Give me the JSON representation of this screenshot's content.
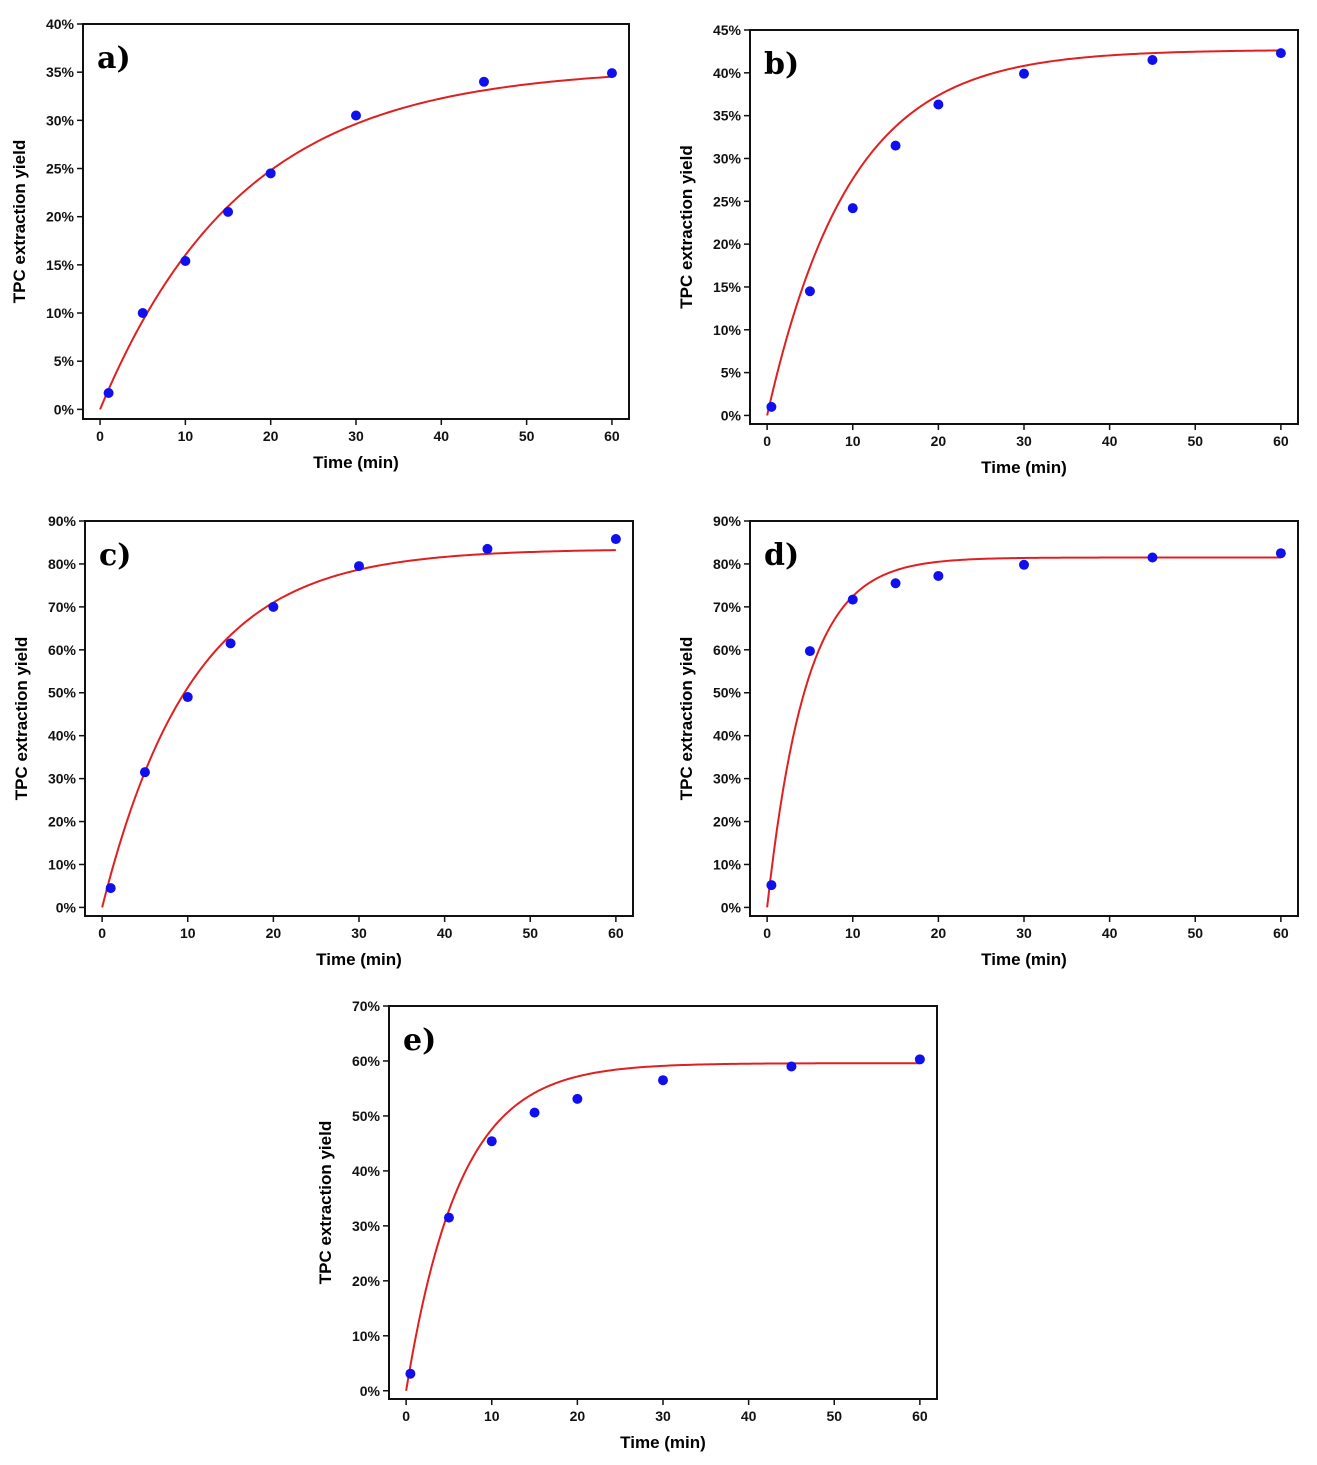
{
  "colors": {
    "points": "#1010ee",
    "fit": "#e02020",
    "frame": "#111111"
  },
  "chart_data": [
    {
      "type": "scatter",
      "panel": "a)",
      "xlabel": "Time (min)",
      "ylabel": "TPC extraction yield",
      "xlim": [
        -2,
        62
      ],
      "ylim": [
        -1,
        40
      ],
      "xticks": [
        0,
        10,
        20,
        30,
        40,
        50,
        60
      ],
      "yticks": [
        "0%",
        "5%",
        "10%",
        "15%",
        "20%",
        "25%",
        "30%",
        "35%",
        "40%"
      ],
      "ytick_values": [
        0,
        5,
        10,
        15,
        20,
        25,
        30,
        35,
        40
      ],
      "grid": false,
      "points": {
        "x": [
          1,
          5,
          10,
          15,
          20,
          30,
          45,
          60
        ],
        "y": [
          1.7,
          10.0,
          15.4,
          20.5,
          24.5,
          30.5,
          34.0,
          34.9
        ]
      },
      "fit": {
        "model": "first-order",
        "ymax": 35.5,
        "k": 0.06,
        "x_range": [
          0,
          60
        ]
      }
    },
    {
      "type": "scatter",
      "panel": "b)",
      "xlabel": "Time (min)",
      "ylabel": "TPC extraction yield",
      "xlim": [
        -2,
        62
      ],
      "ylim": [
        -1,
        45
      ],
      "xticks": [
        0,
        10,
        20,
        30,
        40,
        50,
        60
      ],
      "yticks": [
        "0%",
        "5%",
        "10%",
        "15%",
        "20%",
        "25%",
        "30%",
        "35%",
        "40%",
        "45%"
      ],
      "ytick_values": [
        0,
        5,
        10,
        15,
        20,
        25,
        30,
        35,
        40,
        45
      ],
      "grid": false,
      "points": {
        "x": [
          0.5,
          5,
          10,
          15,
          20,
          30,
          45,
          60
        ],
        "y": [
          1.0,
          14.5,
          24.2,
          31.5,
          36.3,
          39.9,
          41.5,
          42.3
        ]
      },
      "fit": {
        "model": "first-order",
        "ymax": 42.7,
        "k": 0.104,
        "x_range": [
          0,
          60
        ]
      }
    },
    {
      "type": "scatter",
      "panel": "c)",
      "xlabel": "Time (min)",
      "ylabel": "TPC extraction yield",
      "xlim": [
        -2,
        62
      ],
      "ylim": [
        -2,
        90
      ],
      "xticks": [
        0,
        10,
        20,
        30,
        40,
        50,
        60
      ],
      "yticks": [
        "0%",
        "10%",
        "20%",
        "30%",
        "40%",
        "50%",
        "60%",
        "70%",
        "80%",
        "90%"
      ],
      "ytick_values": [
        0,
        10,
        20,
        30,
        40,
        50,
        60,
        70,
        80,
        90
      ],
      "grid": false,
      "points": {
        "x": [
          1,
          5,
          10,
          15,
          20,
          30,
          45,
          60
        ],
        "y": [
          4.5,
          31.5,
          49.0,
          61.5,
          70.0,
          79.5,
          83.5,
          85.8
        ]
      },
      "fit": {
        "model": "first-order",
        "ymax": 83.5,
        "k": 0.095,
        "x_range": [
          0,
          60
        ]
      }
    },
    {
      "type": "scatter",
      "panel": "d)",
      "xlabel": "Time (min)",
      "ylabel": "TPC extraction yield",
      "xlim": [
        -2,
        62
      ],
      "ylim": [
        -2,
        90
      ],
      "xticks": [
        0,
        10,
        20,
        30,
        40,
        50,
        60
      ],
      "yticks": [
        "0%",
        "10%",
        "20%",
        "30%",
        "40%",
        "50%",
        "60%",
        "70%",
        "80%",
        "90%"
      ],
      "ytick_values": [
        0,
        10,
        20,
        30,
        40,
        50,
        60,
        70,
        80,
        90
      ],
      "grid": false,
      "points": {
        "x": [
          0.5,
          5,
          10,
          15,
          20,
          30,
          45,
          60
        ],
        "y": [
          5.2,
          59.7,
          71.7,
          75.5,
          77.2,
          79.8,
          81.5,
          82.5
        ]
      },
      "fit": {
        "model": "first-order",
        "ymax": 81.5,
        "k": 0.22,
        "x_range": [
          0,
          60
        ]
      }
    },
    {
      "type": "scatter",
      "panel": "e)",
      "xlabel": "Time (min)",
      "ylabel": "TPC extraction yield",
      "xlim": [
        -2,
        62
      ],
      "ylim": [
        -1.5,
        70
      ],
      "xticks": [
        0,
        10,
        20,
        30,
        40,
        50,
        60
      ],
      "yticks": [
        "0%",
        "10%",
        "20%",
        "30%",
        "40%",
        "50%",
        "60%",
        "70%"
      ],
      "ytick_values": [
        0,
        10,
        20,
        30,
        40,
        50,
        60,
        70
      ],
      "grid": false,
      "points": {
        "x": [
          0.5,
          5,
          10,
          15,
          20,
          30,
          45,
          60
        ],
        "y": [
          3.1,
          31.5,
          45.4,
          50.6,
          53.1,
          56.5,
          59.0,
          60.3
        ]
      },
      "fit": {
        "model": "first-order",
        "ymax": 59.6,
        "k": 0.16,
        "x_range": [
          0,
          60
        ]
      }
    }
  ]
}
